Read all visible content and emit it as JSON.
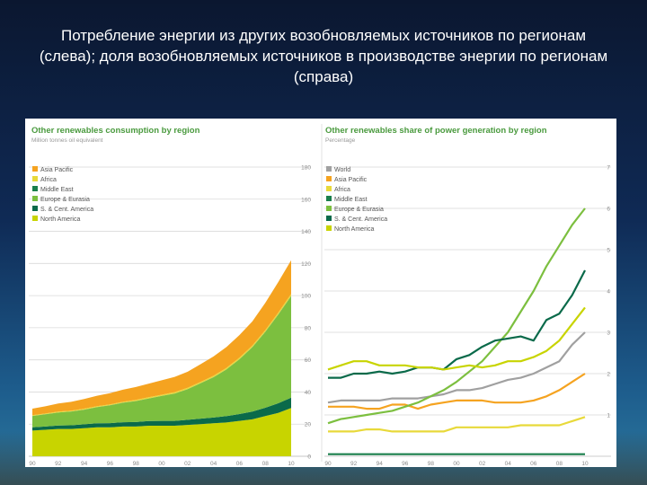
{
  "slide": {
    "title": "Потребление энергии из других возобновляемых источников по регионам (слева); доля возобновляемых источников в производстве энергии по регионам (справа)"
  },
  "chart_data": [
    {
      "type": "area",
      "stacked": true,
      "title": "Other renewables consumption by region",
      "subtitle": "Million tonnes oil equivalent",
      "x_tick_labels": [
        "90",
        "92",
        "94",
        "96",
        "98",
        "00",
        "02",
        "04",
        "06",
        "08",
        "10"
      ],
      "x": [
        1990,
        1991,
        1992,
        1993,
        1994,
        1995,
        1996,
        1997,
        1998,
        1999,
        2000,
        2001,
        2002,
        2003,
        2004,
        2005,
        2006,
        2007,
        2008,
        2009,
        2010
      ],
      "ylim": [
        0,
        180
      ],
      "y_ticks": [
        0,
        20,
        40,
        60,
        80,
        100,
        120,
        140,
        160,
        180
      ],
      "grid": true,
      "legend_position": "top-left",
      "series": [
        {
          "name": "North America",
          "color": "#c8d400",
          "values": [
            16,
            16.5,
            17,
            17,
            17.5,
            18,
            18,
            18.5,
            18.5,
            19,
            19,
            19,
            19.5,
            20,
            20.5,
            21,
            22,
            23,
            25,
            27,
            30
          ]
        },
        {
          "name": "S. & Cent. America",
          "color": "#0a6a4a",
          "values": [
            2,
            2,
            2.2,
            2.3,
            2.4,
            2.5,
            2.6,
            2.7,
            2.8,
            2.9,
            3,
            3,
            3.2,
            3.4,
            3.6,
            4,
            4.3,
            4.8,
            5.2,
            6,
            6.5
          ]
        },
        {
          "name": "Europe & Eurasia",
          "color": "#7cbf3f",
          "values": [
            7,
            7.5,
            8,
            8.5,
            9,
            10,
            11,
            12,
            13,
            14,
            15.5,
            17,
            19,
            22,
            25,
            29,
            34,
            40,
            47,
            55,
            63
          ]
        },
        {
          "name": "Middle East",
          "color": "#1a7f4b",
          "values": [
            0.1,
            0.1,
            0.1,
            0.1,
            0.1,
            0.1,
            0.1,
            0.1,
            0.1,
            0.1,
            0.1,
            0.1,
            0.1,
            0.1,
            0.1,
            0.1,
            0.1,
            0.1,
            0.2,
            0.2,
            0.2
          ]
        },
        {
          "name": "Africa",
          "color": "#e8d93a",
          "values": [
            0.5,
            0.5,
            0.5,
            0.5,
            0.6,
            0.6,
            0.6,
            0.6,
            0.7,
            0.7,
            0.7,
            0.8,
            0.8,
            0.8,
            0.9,
            0.9,
            1,
            1,
            1.1,
            1.2,
            1.3
          ]
        },
        {
          "name": "Asia Pacific",
          "color": "#f5a320",
          "values": [
            4,
            4.5,
            5,
            5.5,
            6,
            6.5,
            7,
            7.5,
            8,
            8.5,
            9,
            9.5,
            10,
            11,
            12,
            13,
            14,
            15,
            17,
            19,
            21
          ]
        }
      ]
    },
    {
      "type": "line",
      "title": "Other renewables share of power generation by region",
      "subtitle": "Percentage",
      "x_tick_labels": [
        "90",
        "92",
        "94",
        "96",
        "98",
        "00",
        "02",
        "04",
        "06",
        "08",
        "10"
      ],
      "x": [
        1990,
        1991,
        1992,
        1993,
        1994,
        1995,
        1996,
        1997,
        1998,
        1999,
        2000,
        2001,
        2002,
        2003,
        2004,
        2005,
        2006,
        2007,
        2008,
        2009,
        2010
      ],
      "ylim": [
        0,
        7
      ],
      "y_ticks": [
        1,
        2,
        3,
        4,
        5,
        6,
        7
      ],
      "grid": true,
      "legend_position": "top-left",
      "series": [
        {
          "name": "World",
          "color": "#a0a0a0",
          "values": [
            1.3,
            1.35,
            1.35,
            1.35,
            1.35,
            1.4,
            1.4,
            1.4,
            1.45,
            1.5,
            1.6,
            1.6,
            1.65,
            1.75,
            1.85,
            1.9,
            2,
            2.15,
            2.3,
            2.7,
            3
          ]
        },
        {
          "name": "Asia Pacific",
          "color": "#f5a320",
          "values": [
            1.2,
            1.2,
            1.2,
            1.15,
            1.15,
            1.25,
            1.25,
            1.15,
            1.25,
            1.3,
            1.35,
            1.35,
            1.35,
            1.3,
            1.3,
            1.3,
            1.35,
            1.45,
            1.6,
            1.8,
            2
          ]
        },
        {
          "name": "Africa",
          "color": "#e8d93a",
          "values": [
            0.6,
            0.6,
            0.6,
            0.65,
            0.65,
            0.6,
            0.6,
            0.6,
            0.6,
            0.6,
            0.7,
            0.7,
            0.7,
            0.7,
            0.7,
            0.75,
            0.75,
            0.75,
            0.75,
            0.85,
            0.95
          ]
        },
        {
          "name": "Middle East",
          "color": "#1a7f4b",
          "values": [
            0.05,
            0.05,
            0.05,
            0.05,
            0.05,
            0.05,
            0.05,
            0.05,
            0.05,
            0.05,
            0.05,
            0.05,
            0.05,
            0.05,
            0.05,
            0.05,
            0.05,
            0.05,
            0.05,
            0.05,
            0.05
          ]
        },
        {
          "name": "Europe & Eurasia",
          "color": "#7cbf3f",
          "values": [
            0.8,
            0.9,
            0.95,
            1,
            1.05,
            1.1,
            1.2,
            1.3,
            1.45,
            1.6,
            1.8,
            2.05,
            2.3,
            2.65,
            3,
            3.5,
            4,
            4.6,
            5.1,
            5.6,
            6
          ]
        },
        {
          "name": "S. & Cent. America",
          "color": "#0a6a4a",
          "values": [
            1.9,
            1.9,
            2,
            2,
            2.05,
            2,
            2.05,
            2.15,
            2.15,
            2.1,
            2.35,
            2.45,
            2.65,
            2.8,
            2.85,
            2.9,
            2.8,
            3.3,
            3.45,
            3.9,
            4.5
          ]
        },
        {
          "name": "North America",
          "color": "#c8d400",
          "values": [
            2.1,
            2.2,
            2.3,
            2.3,
            2.2,
            2.2,
            2.2,
            2.15,
            2.15,
            2.1,
            2.15,
            2.2,
            2.15,
            2.2,
            2.3,
            2.3,
            2.4,
            2.55,
            2.8,
            3.2,
            3.6
          ]
        }
      ]
    }
  ]
}
